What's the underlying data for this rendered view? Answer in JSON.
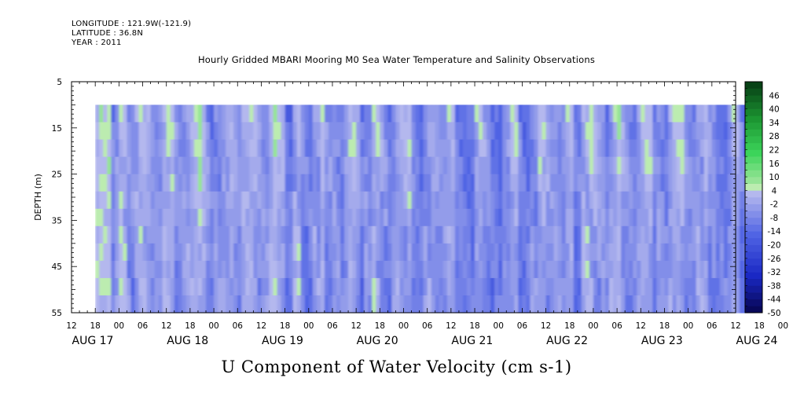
{
  "header": {
    "longitude": "LONGITUDE : 121.9W(-121.9)",
    "latitude": "LATITUDE : 36.8N",
    "year": "YEAR : 2011",
    "title": "Hourly Gridded MBARI Mooring M0 Sea Water Temperature and Salinity Observations"
  },
  "bottom_title": "U Component of Water Velocity (cm s-1)",
  "chart_data": {
    "type": "heatmap",
    "title": "Hourly Gridded MBARI Mooring M0 Sea Water Temperature and Salinity Observations",
    "subtitle": "U Component of Water Velocity (cm s-1)",
    "xlabel": "",
    "ylabel": "DEPTH (m)",
    "ylim": [
      5,
      55
    ],
    "y_inverted": true,
    "y_ticks": [
      5,
      15,
      25,
      35,
      45,
      55
    ],
    "data_depth_range": [
      10,
      55
    ],
    "x_hour_labels": [
      "12",
      "18",
      "00",
      "06",
      "12",
      "18",
      "00",
      "06",
      "12",
      "18",
      "00",
      "06",
      "12",
      "18",
      "00",
      "06",
      "12",
      "18",
      "00",
      "06",
      "12",
      "18",
      "00",
      "06",
      "12",
      "18",
      "00",
      "06",
      "12",
      "18",
      "00",
      "06",
      "12"
    ],
    "x_date_labels": [
      "AUG 17",
      "AUG 18",
      "AUG 19",
      "AUG 20",
      "AUG 21",
      "AUG 22",
      "AUG 23",
      "AUG 24"
    ],
    "x_range": [
      "2011-08-17 12:00",
      "2011-08-24 12:00"
    ],
    "data_time_start": "2011-08-17 18:00",
    "colorbar": {
      "labels": [
        "46",
        "40",
        "34",
        "28",
        "22",
        "16",
        "10",
        "4",
        "-2",
        "-8",
        "-14",
        "-20",
        "-26",
        "-32",
        "-38",
        "-44",
        "-50"
      ],
      "min": -50,
      "max": 52,
      "step": 3
    },
    "column_means": [
      2.6,
      4.9,
      4.3,
      3.9,
      -14.6,
      -6.2,
      3.4,
      2.8,
      -7.9,
      -8.4,
      -2.5,
      1.5,
      1.5,
      -0.2,
      -8.2,
      -7.8,
      -7.6,
      2.1,
      3.8,
      2.0,
      -9.3,
      -10.8,
      -6.2,
      -2.3,
      2.0,
      4.2,
      6.4,
      0.4,
      -10.3,
      -14.9,
      -6.2,
      -8.1,
      -1.8,
      -0.3,
      1.5,
      -3.5,
      -10.6,
      -2.0,
      0.9,
      2.0,
      0.2,
      -6.9,
      -6.4,
      -5.1,
      1.6,
      5.6,
      1.4,
      -0.2,
      -17.4,
      -16.5,
      0.4,
      4.1,
      -9.5,
      -11.4,
      -12.3,
      -3.6,
      -2.4,
      6.0,
      -8.6,
      -9.0,
      -4.6,
      -8.8,
      -12.0,
      -1.7,
      5.0,
      2.4,
      -2.6,
      -15.7,
      -9.2,
      -10.5,
      4.7,
      3.0,
      -2.8,
      -8.3,
      -14.6,
      -7.4,
      1.1,
      0.0,
      0.4,
      4.5,
      -12.0,
      -13.3,
      -13.7,
      -5.1,
      -1.9,
      -2.3,
      -4.8,
      -6.6,
      -6.0,
      1.1,
      0.3,
      -13.2,
      -12.3,
      -13.5,
      -11.8,
      -13.0,
      2.3,
      3.4,
      -4.6,
      -8.7,
      -13.9,
      -13.1,
      -15.3,
      -4.6,
      -3.5,
      2.3,
      4.0,
      -15.5,
      -15.2,
      -15.6,
      -4.2,
      -4.4,
      5.0,
      3.2,
      -5.3,
      -8.5,
      -4.4,
      -7.8,
      -6.8,
      0.3,
      3.3,
      -15.4,
      -14.5,
      2.5,
      2.9,
      4.3,
      -0.6,
      -3.9,
      -6.5,
      -13.6,
      -3.3,
      1.6,
      7.4,
      -2.5,
      -7.0,
      -10.1,
      -11.9,
      -3.2,
      2.6,
      4.0,
      3.0,
      -13.7,
      -6.2,
      -10.6,
      -11.9,
      -0.5,
      1.4,
      3.2,
      2.5,
      -7.3,
      -10.8,
      -11.5,
      0.4,
      -2.1,
      2.8,
      -8.7,
      -7.2,
      -14.4,
      -11.9,
      -12.6,
      -7.1,
      5.0,
      2.6,
      -13.0,
      -14.8,
      -5.6,
      -8.5
    ]
  }
}
